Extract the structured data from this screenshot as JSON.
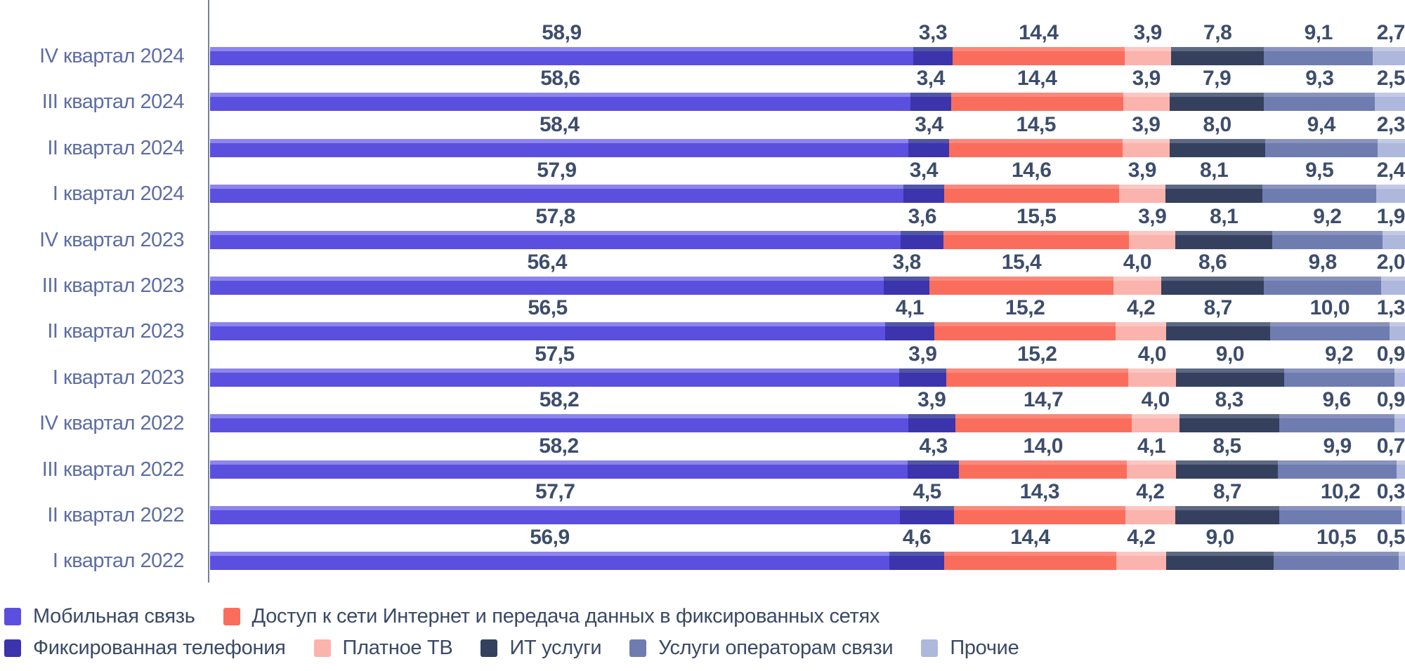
{
  "chart_data": {
    "type": "bar",
    "stacked": true,
    "orientation": "horizontal",
    "value_format": "percent, one decimal, comma separator",
    "xlim": [
      0,
      100
    ],
    "grid": false,
    "legend_position": "bottom",
    "axis_color": "#76819c",
    "category_label_color": "#5d6da3",
    "value_label_color": "#3d4d6c",
    "legend_text_color": "#3a4966",
    "categories": [
      "IV квартал 2024",
      "III квартал 2024",
      "II квартал 2024",
      "I квартал 2024",
      "IV квартал 2023",
      "III квартал 2023",
      "II квартал 2023",
      "I квартал 2023",
      "IV квартал 2022",
      "III квартал 2022",
      "II квартал 2022",
      "I квартал 2022"
    ],
    "series": [
      {
        "name": "Мобильная связь",
        "color": "#5b4fdf",
        "color_light": "#8d85ed",
        "values": [
          58.9,
          58.6,
          58.4,
          57.9,
          57.8,
          56.4,
          56.5,
          57.5,
          58.2,
          58.2,
          57.7,
          56.9
        ]
      },
      {
        "name": "Фиксированная телефония",
        "color": "#3b34ad",
        "color_light": "#5157a5",
        "values": [
          3.3,
          3.4,
          3.4,
          3.4,
          3.6,
          3.8,
          4.1,
          3.9,
          3.9,
          4.3,
          4.5,
          4.6
        ]
      },
      {
        "name": "Доступ к сети Интернет и передача данных в фиксированных сетях",
        "color": "#fa6d5d",
        "color_light": "#fb887b",
        "values": [
          14.4,
          14.4,
          14.5,
          14.6,
          15.5,
          15.4,
          15.2,
          15.2,
          14.7,
          14.0,
          14.3,
          14.4
        ]
      },
      {
        "name": "Платное ТВ",
        "color": "#fbb3ae",
        "color_light": "#fcc7c3",
        "values": [
          3.9,
          3.9,
          3.9,
          3.9,
          3.9,
          4.0,
          4.2,
          4.0,
          4.0,
          4.1,
          4.2,
          4.2
        ]
      },
      {
        "name": "ИТ услуги",
        "color": "#34405e",
        "color_light": "#5d6982",
        "values": [
          7.8,
          7.9,
          8.0,
          8.1,
          8.1,
          8.6,
          8.7,
          9.0,
          8.3,
          8.5,
          8.7,
          9.0
        ]
      },
      {
        "name": "Услуги операторам связи",
        "color": "#6f7cb0",
        "color_light": "#8a93bd",
        "values": [
          9.1,
          9.3,
          9.4,
          9.5,
          9.2,
          9.8,
          10.0,
          9.2,
          9.6,
          9.9,
          10.2,
          10.5
        ]
      },
      {
        "name": "Прочие",
        "color": "#adb8dc",
        "color_light": "#c2c9e5",
        "values": [
          2.7,
          2.5,
          2.3,
          2.4,
          1.9,
          2.0,
          1.3,
          0.9,
          0.9,
          0.7,
          0.3,
          0.5
        ]
      }
    ],
    "legend_rows": [
      [
        0,
        2
      ],
      [
        1,
        3,
        4,
        5,
        6
      ]
    ]
  }
}
